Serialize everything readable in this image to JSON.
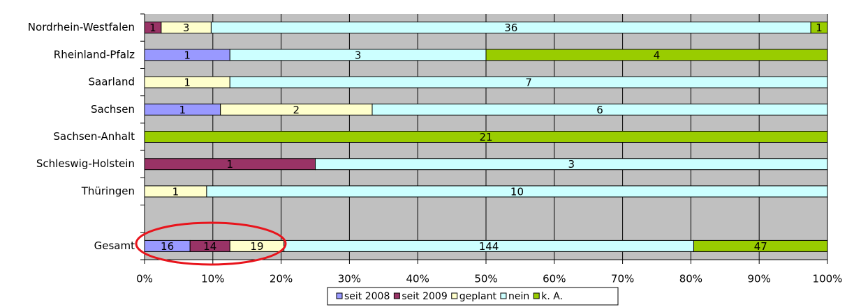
{
  "chart_data": {
    "type": "bar",
    "orientation": "horizontal",
    "stack": "percent",
    "categories": [
      "Nordrhein-Westfalen",
      "Rheinland-Pfalz",
      "Saarland",
      "Sachsen",
      "Sachsen-Anhalt",
      "Schleswig-Holstein",
      "Thüringen",
      null,
      "Gesamt"
    ],
    "series": [
      {
        "name": "seit 2008",
        "color": "#9999ff",
        "values": [
          null,
          1,
          null,
          1,
          null,
          null,
          null,
          null,
          16
        ]
      },
      {
        "name": "seit 2009",
        "color": "#993366",
        "values": [
          1,
          null,
          null,
          null,
          null,
          1,
          null,
          null,
          14
        ]
      },
      {
        "name": "geplant",
        "color": "#ffffcc",
        "values": [
          3,
          null,
          1,
          2,
          null,
          null,
          1,
          null,
          19
        ]
      },
      {
        "name": "nein",
        "color": "#ccffff",
        "values": [
          36,
          3,
          7,
          6,
          null,
          3,
          10,
          null,
          144
        ]
      },
      {
        "name": "k. A.",
        "color": "#99cc00",
        "values": [
          1,
          4,
          null,
          null,
          21,
          null,
          null,
          null,
          47
        ]
      }
    ],
    "xlim": [
      0,
      100
    ],
    "xticks": [
      {
        "value": 0,
        "label": "0%"
      },
      {
        "value": 10,
        "label": "10%"
      },
      {
        "value": 20,
        "label": "20%"
      },
      {
        "value": 30,
        "label": "30%"
      },
      {
        "value": 40,
        "label": "40%"
      },
      {
        "value": 50,
        "label": "50%"
      },
      {
        "value": 60,
        "label": "60%"
      },
      {
        "value": 70,
        "label": "70%"
      },
      {
        "value": 80,
        "label": "80%"
      },
      {
        "value": 90,
        "label": "90%"
      },
      {
        "value": 100,
        "label": "100%"
      }
    ],
    "grid": true,
    "legend": "bottom"
  }
}
